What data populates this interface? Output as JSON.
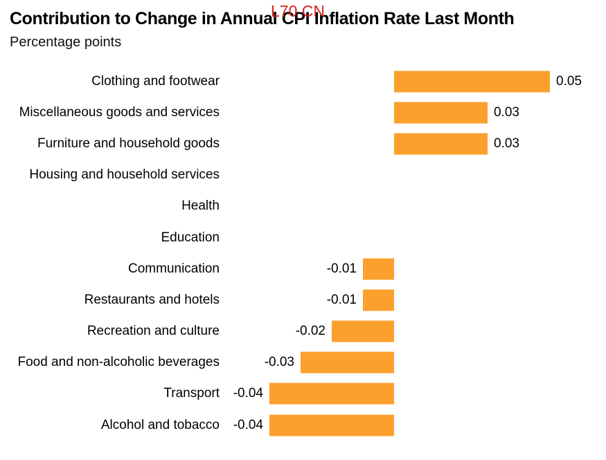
{
  "header": {
    "title": "Contribution to Change in Annual CPI Inflation Rate Last Month",
    "subtitle": "Percentage points",
    "overlay_label": "L70 CN"
  },
  "colors": {
    "bar": "#FCA02D",
    "overlay_red": "#D8231D",
    "text": "#000000",
    "background": "#FFFFFF"
  },
  "chart_data": {
    "type": "bar",
    "orientation": "horizontal",
    "title": "Contribution to Change in Annual CPI Inflation Rate Last Month",
    "subtitle": "Percentage points",
    "ylabel": "",
    "xlabel": "Percentage points",
    "grid": false,
    "legend": false,
    "xlim": [
      -0.056,
      0.068
    ],
    "categories": [
      "Clothing and footwear",
      "Miscellaneous goods and services",
      "Furniture and household goods",
      "Housing and household services",
      "Health",
      "Education",
      "Communication",
      "Restaurants and hotels",
      "Recreation and culture",
      "Food and non-alcoholic beverages",
      "Transport",
      "Alcohol and tobacco"
    ],
    "values": [
      0.05,
      0.03,
      0.03,
      0,
      0,
      0,
      -0.01,
      -0.01,
      -0.02,
      -0.03,
      -0.04,
      -0.04
    ],
    "value_labels": [
      "0.05",
      "0.03",
      "0.03",
      "",
      "",
      "",
      "-0.01",
      "-0.01",
      "-0.02",
      "-0.03",
      "-0.04",
      "-0.04"
    ],
    "bar_color": "#FCA02D"
  }
}
